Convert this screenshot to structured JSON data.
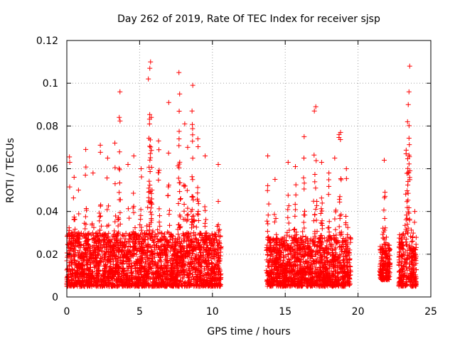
{
  "chart_data": {
    "type": "scatter",
    "title": "Day 262 of 2019, Rate Of TEC Index for receiver sjsp",
    "xlabel": "GPS time / hours",
    "ylabel": "ROTI / TECUs",
    "xlim": [
      0,
      25
    ],
    "ylim": [
      0,
      0.12
    ],
    "xticks": [
      0,
      5,
      10,
      15,
      20,
      25
    ],
    "xtick_labels": [
      "0",
      "5",
      "10",
      "15",
      "20",
      "25"
    ],
    "yticks": [
      0,
      0.02,
      0.04,
      0.06,
      0.08,
      0.1,
      0.12
    ],
    "ytick_labels": [
      "0",
      "0.02",
      "0.04",
      "0.06",
      "0.08",
      "0.1",
      "0.12"
    ],
    "grid": true,
    "marker": "+",
    "series_color": "#ff0000",
    "series": [
      {
        "name": "ROTI",
        "segments": [
          {
            "start": 0.0,
            "end": 10.6,
            "base_min": 0.005,
            "base_max": 0.03
          },
          {
            "start": 13.7,
            "end": 19.5,
            "base_min": 0.005,
            "base_max": 0.028
          },
          {
            "start": 21.5,
            "end": 22.2,
            "base_min": 0.008,
            "base_max": 0.025
          },
          {
            "start": 22.8,
            "end": 24.0,
            "base_min": 0.005,
            "base_max": 0.03
          }
        ],
        "peaks": [
          {
            "x": 0.2,
            "y": 0.063
          },
          {
            "x": 0.5,
            "y": 0.056
          },
          {
            "x": 0.8,
            "y": 0.05
          },
          {
            "x": 1.3,
            "y": 0.069
          },
          {
            "x": 1.8,
            "y": 0.058
          },
          {
            "x": 2.3,
            "y": 0.071
          },
          {
            "x": 2.8,
            "y": 0.065
          },
          {
            "x": 3.3,
            "y": 0.072
          },
          {
            "x": 3.6,
            "y": 0.084
          },
          {
            "x": 3.65,
            "y": 0.096
          },
          {
            "x": 4.2,
            "y": 0.062
          },
          {
            "x": 4.6,
            "y": 0.066
          },
          {
            "x": 5.1,
            "y": 0.06
          },
          {
            "x": 5.6,
            "y": 0.102
          },
          {
            "x": 5.7,
            "y": 0.107
          },
          {
            "x": 5.75,
            "y": 0.11
          },
          {
            "x": 5.8,
            "y": 0.084
          },
          {
            "x": 6.3,
            "y": 0.073
          },
          {
            "x": 7.0,
            "y": 0.091
          },
          {
            "x": 7.7,
            "y": 0.105
          },
          {
            "x": 7.75,
            "y": 0.095
          },
          {
            "x": 8.1,
            "y": 0.081
          },
          {
            "x": 8.3,
            "y": 0.07
          },
          {
            "x": 8.6,
            "y": 0.087
          },
          {
            "x": 8.65,
            "y": 0.099
          },
          {
            "x": 9.0,
            "y": 0.074
          },
          {
            "x": 9.5,
            "y": 0.066
          },
          {
            "x": 10.4,
            "y": 0.062
          },
          {
            "x": 13.8,
            "y": 0.066
          },
          {
            "x": 14.3,
            "y": 0.055
          },
          {
            "x": 15.2,
            "y": 0.063
          },
          {
            "x": 15.7,
            "y": 0.061
          },
          {
            "x": 16.3,
            "y": 0.075
          },
          {
            "x": 17.0,
            "y": 0.087
          },
          {
            "x": 17.1,
            "y": 0.089
          },
          {
            "x": 17.5,
            "y": 0.063
          },
          {
            "x": 18.0,
            "y": 0.058
          },
          {
            "x": 18.4,
            "y": 0.065
          },
          {
            "x": 18.7,
            "y": 0.076
          },
          {
            "x": 18.8,
            "y": 0.077
          },
          {
            "x": 19.2,
            "y": 0.06
          },
          {
            "x": 21.8,
            "y": 0.064
          },
          {
            "x": 21.85,
            "y": 0.049
          },
          {
            "x": 23.3,
            "y": 0.067
          },
          {
            "x": 23.4,
            "y": 0.082
          },
          {
            "x": 23.45,
            "y": 0.09
          },
          {
            "x": 23.5,
            "y": 0.096
          },
          {
            "x": 23.55,
            "y": 0.108
          },
          {
            "x": 23.9,
            "y": 0.04
          }
        ]
      }
    ]
  }
}
